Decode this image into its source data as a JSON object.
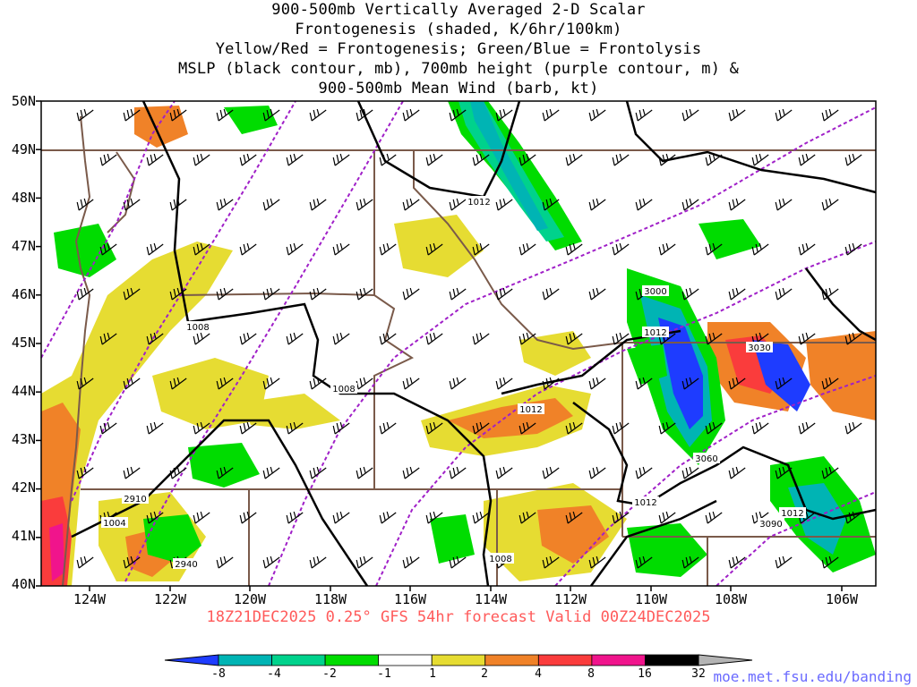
{
  "title": {
    "lines": [
      "900-500mb Vertically Averaged 2-D Scalar",
      "Frontogenesis (shaded, K/6hr/100km)",
      "Yellow/Red = Frontogenesis;  Green/Blue = Frontolysis",
      "MSLP (black contour, mb), 700mb height (purple contour, m) &",
      "900-500mb Mean Wind (barb, kt)"
    ]
  },
  "valid_line": "18Z21DEC2025 0.25° GFS 54hr forecast Valid 00Z24DEC2025",
  "credit": "moe.met.fsu.edu/banding",
  "axes": {
    "lat_labels": [
      "50N",
      "49N",
      "48N",
      "47N",
      "46N",
      "45N",
      "44N",
      "43N",
      "42N",
      "41N",
      "40N"
    ],
    "lon_labels": [
      "124W",
      "122W",
      "120W",
      "118W",
      "116W",
      "114W",
      "112W",
      "110W",
      "108W",
      "106W"
    ]
  },
  "mslp_labels": [
    "1012",
    "1008",
    "1008",
    "1012",
    "1012",
    "1012",
    "1012",
    "1008",
    "1004"
  ],
  "height_labels": [
    "3000",
    "3030",
    "3060",
    "3090",
    "2910",
    "2940"
  ],
  "colorbar": {
    "labels": [
      "-8",
      "-4",
      "-2",
      "-1",
      "1",
      "2",
      "4",
      "8",
      "16",
      "32"
    ],
    "colors": [
      "#1e3cff",
      "#00b4b4",
      "#00d28c",
      "#00dc00",
      "#ffffff",
      "#e6dc32",
      "#f08228",
      "#fa3c3c",
      "#f0148c",
      "#000000",
      "#b4b4b4"
    ]
  }
}
